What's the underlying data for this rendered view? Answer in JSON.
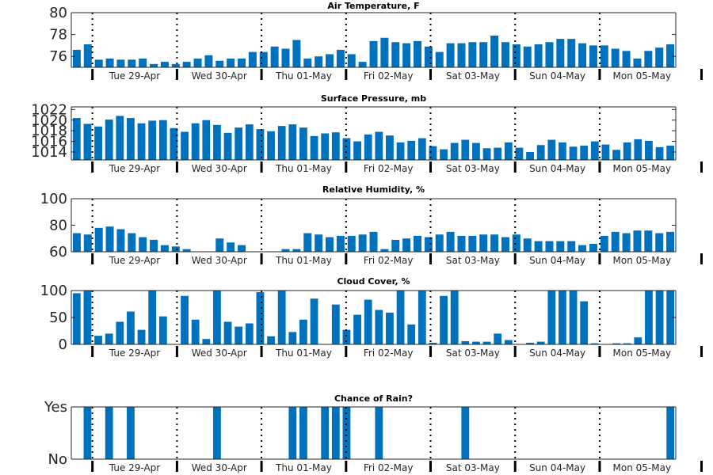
{
  "x_axis": {
    "tick_labels": [
      "Tue 29-Apr",
      "Wed 30-Apr",
      "Thu 01-May",
      "Fri 02-May",
      "Sat 03-May",
      "Sun 04-May",
      "Mon 05-May"
    ]
  },
  "colors": {
    "bar": "#0072BD",
    "axis": "#262626"
  },
  "chart_data": [
    {
      "type": "bar",
      "title": "Air Temperature, F",
      "ylim": [
        75,
        80
      ],
      "yticks": [
        76,
        78,
        80
      ],
      "ytick_labels": [
        "76",
        "78",
        "80"
      ],
      "values": [
        76.6,
        77.1,
        75.7,
        75.8,
        75.7,
        75.7,
        75.8,
        75.3,
        75.5,
        75.3,
        75.5,
        75.8,
        76.1,
        75.6,
        75.8,
        75.8,
        76.4,
        76.4,
        76.9,
        76.7,
        77.5,
        75.8,
        76.0,
        76.2,
        76.6,
        76.2,
        75.5,
        77.4,
        77.7,
        77.3,
        77.2,
        77.4,
        76.9,
        76.4,
        77.2,
        77.2,
        77.3,
        77.3,
        77.9,
        77.3,
        77.1,
        76.9,
        77.1,
        77.3,
        77.6,
        77.6,
        77.2,
        77.0,
        77.0,
        76.7,
        76.5,
        75.8,
        76.5,
        76.8,
        77.1
      ]
    },
    {
      "type": "bar",
      "title": "Surface Pressure, mb",
      "ylim": [
        1012.5,
        1022.5
      ],
      "yticks": [
        1014,
        1016,
        1018,
        1020,
        1022
      ],
      "ytick_labels": [
        "1014",
        "1016",
        "1018",
        "1020",
        "1022"
      ],
      "values": [
        1020.4,
        1019.3,
        1018.8,
        1020.1,
        1020.8,
        1020.4,
        1019.4,
        1019.9,
        1020.0,
        1018.5,
        1017.8,
        1019.4,
        1020.0,
        1019.1,
        1017.6,
        1018.6,
        1019.2,
        1018.3,
        1017.9,
        1018.9,
        1019.2,
        1018.6,
        1017.0,
        1017.5,
        1017.7,
        1016.6,
        1016.0,
        1017.3,
        1017.8,
        1017.1,
        1015.8,
        1016.1,
        1016.6,
        1015.1,
        1014.5,
        1015.7,
        1016.3,
        1015.7,
        1014.7,
        1014.8,
        1015.8,
        1014.8,
        1014.0,
        1015.3,
        1016.3,
        1015.8,
        1015.0,
        1015.2,
        1016.0,
        1015.4,
        1014.4,
        1015.8,
        1016.4,
        1016.1,
        1014.9,
        1015.2
      ]
    },
    {
      "type": "bar",
      "title": "Relative Humidity, %",
      "ylim": [
        60,
        100
      ],
      "yticks": [
        60,
        80,
        100
      ],
      "ytick_labels": [
        "60",
        "80",
        "100"
      ],
      "values": [
        74,
        73,
        78,
        79,
        77,
        74,
        71,
        69,
        65,
        64,
        62,
        59,
        59,
        70,
        67,
        65,
        59,
        59,
        59,
        62,
        62,
        74,
        73,
        71,
        72,
        72,
        73,
        75,
        62,
        69,
        70,
        72,
        71,
        73,
        75,
        72,
        72,
        73,
        73,
        71,
        73,
        70,
        68,
        68,
        68,
        68,
        65,
        66,
        72,
        75,
        74,
        76,
        76,
        74,
        75
      ]
    },
    {
      "type": "bar",
      "title": "Cloud Cover, %",
      "ylim": [
        0,
        100
      ],
      "yticks": [
        0,
        50,
        100
      ],
      "ytick_labels": [
        "0",
        "50",
        "100"
      ],
      "values": [
        95,
        100,
        16,
        20,
        42,
        61,
        27,
        100,
        52,
        0,
        90,
        46,
        10,
        100,
        42,
        33,
        39,
        97,
        15,
        100,
        23,
        46,
        85,
        0,
        74,
        27,
        55,
        83,
        64,
        59,
        100,
        37,
        100,
        3,
        90,
        100,
        6,
        5,
        5,
        20,
        8,
        0,
        3,
        5,
        100,
        100,
        100,
        80,
        2,
        0,
        2,
        2,
        13,
        100,
        100,
        100
      ]
    },
    {
      "type": "bar",
      "title": "Chance of Rain?",
      "ylim": [
        0,
        1
      ],
      "yticks": [
        0,
        1
      ],
      "ytick_labels": [
        "No",
        "Yes"
      ],
      "values": [
        0,
        1,
        0,
        1,
        0,
        1,
        0,
        0,
        0,
        0,
        0,
        0,
        0,
        1,
        0,
        0,
        0,
        0,
        0,
        0,
        1,
        1,
        0,
        1,
        1,
        1,
        0,
        0,
        1,
        0,
        0,
        0,
        0,
        0,
        0,
        0,
        1,
        0,
        0,
        0,
        0,
        0,
        0,
        0,
        0,
        0,
        0,
        0,
        0,
        0,
        0,
        0,
        0,
        0,
        0,
        1
      ]
    }
  ]
}
